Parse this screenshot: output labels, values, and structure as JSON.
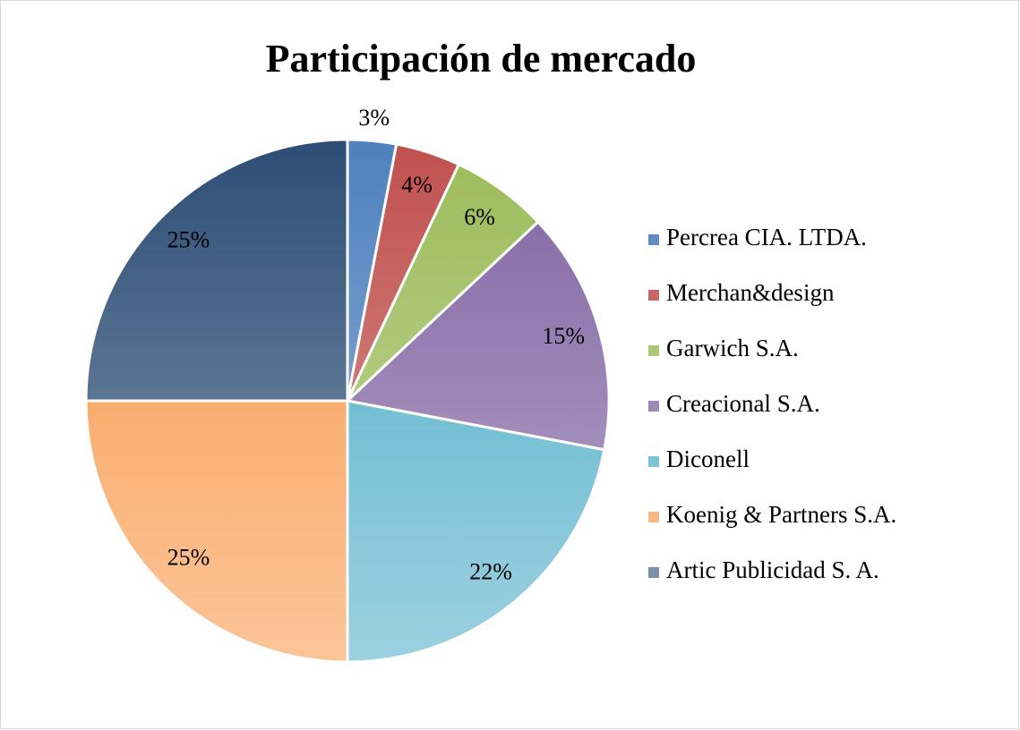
{
  "chart_data": {
    "type": "pie",
    "title": "Participación de mercado",
    "categories": [
      "Percrea CIA. LTDA.",
      "Merchan&design",
      "Garwich S.A.",
      "Creacional S.A.",
      "Diconell",
      "Koenig & Partners S.A.",
      "Artic Publicidad S. A."
    ],
    "values": [
      3,
      4,
      6,
      15,
      22,
      25,
      25
    ],
    "value_labels": [
      "3%",
      "4%",
      "6%",
      "15%",
      "22%",
      "25%",
      "25%"
    ],
    "colors": [
      "#4f81bd",
      "#c0504d",
      "#9bbb59",
      "#8064a2",
      "#4bacc6",
      "#f79646",
      "#2c4d75"
    ],
    "legend": "right"
  }
}
